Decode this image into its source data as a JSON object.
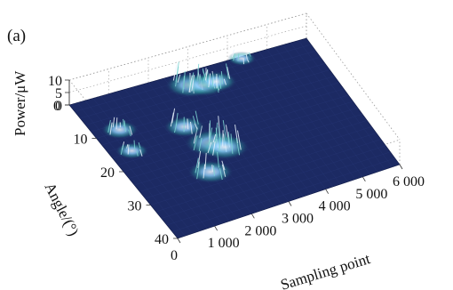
{
  "panel_label": "(a)",
  "chart_data": {
    "type": "surface",
    "title": "",
    "xlabel": "Sampling point",
    "ylabel": "Angle/(°)",
    "zlabel": "Power/μW",
    "xlim": [
      0,
      6000
    ],
    "ylim": [
      0,
      40
    ],
    "zlim": [
      0,
      10
    ],
    "x_ticks": [
      0,
      1000,
      2000,
      3000,
      4000,
      5000,
      6000
    ],
    "x_tick_labels": [
      "0",
      "1 000",
      "2 000",
      "3 000",
      "4 000",
      "5 000",
      "6 000"
    ],
    "y_ticks": [
      0,
      10,
      20,
      30,
      40
    ],
    "y_tick_labels": [
      "0",
      "10",
      "20",
      "30",
      "40"
    ],
    "z_ticks": [
      0,
      5,
      10
    ],
    "z_tick_labels": [
      "0",
      "5",
      "10"
    ],
    "grid": true,
    "colors": {
      "surface_base": "#1c2a63",
      "box": "#444444",
      "grid": "#9a9a9a"
    },
    "features": [
      {
        "x": 2800,
        "y": 4,
        "power": 8
      },
      {
        "x": 3100,
        "y": 5,
        "power": 7
      },
      {
        "x": 3400,
        "y": 5,
        "power": 6
      },
      {
        "x": 2300,
        "y": 20,
        "power": 9
      },
      {
        "x": 2500,
        "y": 22,
        "power": 8
      },
      {
        "x": 1800,
        "y": 27,
        "power": 7
      },
      {
        "x": 2000,
        "y": 14,
        "power": 6
      },
      {
        "x": 600,
        "y": 10,
        "power": 5
      },
      {
        "x": 500,
        "y": 16,
        "power": 4
      },
      {
        "x": 4300,
        "y": 1,
        "power": 3
      }
    ]
  }
}
